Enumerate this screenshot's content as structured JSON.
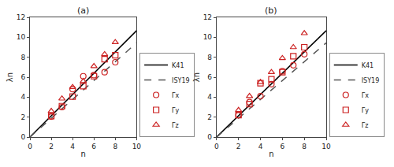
{
  "chart_data": [
    {
      "type": "scatter",
      "title": "(a)",
      "xlabel": "n",
      "ylabel": "λn",
      "xlim": [
        0,
        10
      ],
      "ylim": [
        0,
        12
      ],
      "xticks": [
        0,
        2,
        4,
        6,
        8,
        10
      ],
      "yticks": [
        0,
        2,
        4,
        6,
        8,
        10,
        12
      ],
      "grid": false,
      "legend": "lower right",
      "series": [
        {
          "name": "K41",
          "type": "line",
          "color": "#000000",
          "line_style": "solid",
          "x": [
            0,
            10
          ],
          "values": [
            0,
            10.667
          ]
        },
        {
          "name": "ISY19",
          "type": "line",
          "color": "#555555",
          "line_style": "dashed",
          "x": [
            0,
            10
          ],
          "values": [
            0,
            9.44
          ]
        },
        {
          "name": "Γx",
          "type": "scatter",
          "color": "#cc2222",
          "marker": "circle",
          "x": [
            2,
            3,
            4,
            5,
            6,
            7,
            8
          ],
          "values": [
            2.05,
            3.0,
            4.8,
            6.1,
            6.2,
            6.5,
            7.5
          ]
        },
        {
          "name": "Γy",
          "type": "scatter",
          "color": "#cc2222",
          "marker": "square",
          "x": [
            2,
            3,
            4,
            5,
            6,
            7,
            8
          ],
          "values": [
            2.1,
            3.1,
            4.05,
            5.1,
            6.1,
            7.8,
            8.2
          ]
        },
        {
          "name": "Γz",
          "type": "scatter",
          "color": "#cc2222",
          "marker": "triangle",
          "x": [
            2,
            3,
            4,
            5,
            6,
            7,
            8
          ],
          "values": [
            2.6,
            3.85,
            5.0,
            5.6,
            7.1,
            8.3,
            9.5
          ]
        }
      ]
    },
    {
      "type": "scatter",
      "title": "(b)",
      "xlabel": "n",
      "ylabel": "λn",
      "xlim": [
        0,
        10
      ],
      "ylim": [
        0,
        12
      ],
      "xticks": [
        0,
        2,
        4,
        6,
        8,
        10
      ],
      "yticks": [
        0,
        2,
        4,
        6,
        8,
        10,
        12
      ],
      "grid": false,
      "legend": "lower right",
      "series": [
        {
          "name": "K41",
          "type": "line",
          "color": "#000000",
          "line_style": "solid",
          "x": [
            0,
            10
          ],
          "values": [
            0,
            10.667
          ]
        },
        {
          "name": "ISY19",
          "type": "line",
          "color": "#555555",
          "line_style": "dashed",
          "x": [
            0,
            10
          ],
          "values": [
            0,
            9.44
          ]
        },
        {
          "name": "Γx",
          "type": "scatter",
          "color": "#cc2222",
          "marker": "circle",
          "x": [
            2,
            3,
            4,
            5,
            6,
            7,
            8
          ],
          "values": [
            2.2,
            3.5,
            4.1,
            5.3,
            6.6,
            7.2,
            8.3
          ]
        },
        {
          "name": "Γy",
          "type": "scatter",
          "color": "#cc2222",
          "marker": "square",
          "x": [
            2,
            3,
            4,
            5,
            6,
            7,
            8
          ],
          "values": [
            2.2,
            3.3,
            5.4,
            5.8,
            6.5,
            8.1,
            9.0
          ]
        },
        {
          "name": "Γz",
          "type": "scatter",
          "color": "#cc2222",
          "marker": "triangle",
          "x": [
            2,
            3,
            4,
            5,
            6,
            7,
            8
          ],
          "values": [
            2.7,
            4.1,
            5.5,
            6.5,
            7.9,
            9.0,
            10.4
          ]
        }
      ]
    }
  ]
}
